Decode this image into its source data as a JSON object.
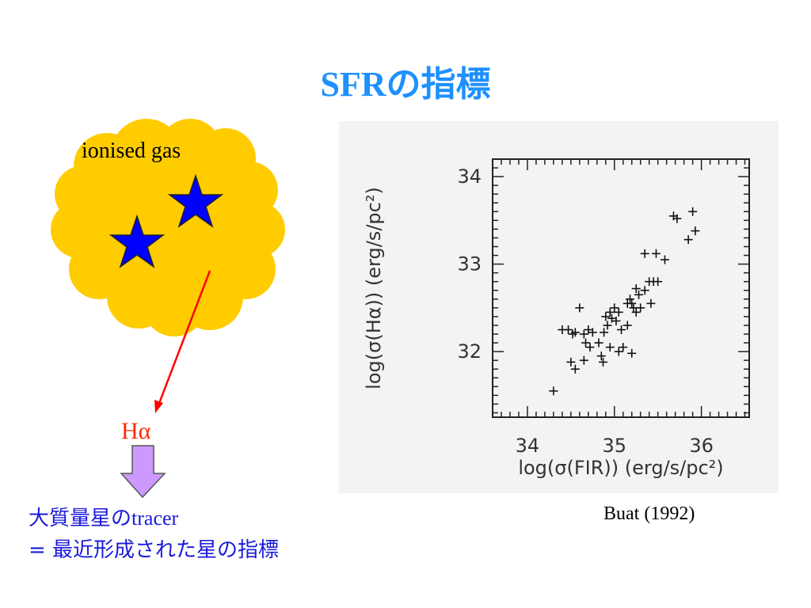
{
  "slide": {
    "title": "SFRの指標",
    "gas_label": "ionised gas",
    "halpha_label": "Hα",
    "tracer_ja": "大質量星の",
    "tracer_en": "tracer",
    "indicator": "= 最近形成された星の指標",
    "citation": "Buat (1992)"
  },
  "colors": {
    "title": "#1e90ff",
    "cloud": "#ffcc00",
    "star": "#0000ff",
    "arrow": "#ff0000",
    "down_arrow": "#cc99ff",
    "text_blue": "#1a1adb"
  },
  "icons": [
    "star-icon",
    "star-icon",
    "down-arrow-icon"
  ],
  "chart_data": {
    "type": "scatter",
    "xlabel": "log(σ(FIR)) (erg/s/pc²)",
    "ylabel": "log(σ(Hα)) (erg/s/pc²)",
    "xlim": [
      33.6,
      36.55
    ],
    "ylim": [
      31.25,
      34.2
    ],
    "xticks": [
      "34",
      "35",
      "36"
    ],
    "yticks": [
      "32",
      "33",
      "34"
    ],
    "marker": "+",
    "grid": false,
    "points": [
      [
        34.3,
        31.55
      ],
      [
        34.4,
        32.25
      ],
      [
        34.47,
        32.25
      ],
      [
        34.52,
        32.2
      ],
      [
        34.55,
        32.22
      ],
      [
        34.6,
        32.5
      ],
      [
        34.65,
        32.2
      ],
      [
        34.7,
        32.25
      ],
      [
        34.75,
        32.22
      ],
      [
        34.5,
        31.88
      ],
      [
        34.55,
        31.8
      ],
      [
        34.65,
        31.9
      ],
      [
        34.67,
        32.1
      ],
      [
        34.72,
        32.05
      ],
      [
        34.85,
        31.95
      ],
      [
        34.87,
        31.88
      ],
      [
        34.82,
        32.1
      ],
      [
        34.88,
        32.22
      ],
      [
        34.9,
        32.4
      ],
      [
        34.92,
        32.3
      ],
      [
        34.95,
        32.45
      ],
      [
        34.97,
        32.38
      ],
      [
        35.0,
        32.5
      ],
      [
        35.02,
        32.35
      ],
      [
        35.05,
        32.45
      ],
      [
        34.95,
        32.05
      ],
      [
        35.05,
        32.0
      ],
      [
        35.1,
        32.05
      ],
      [
        35.15,
        32.3
      ],
      [
        35.08,
        32.25
      ],
      [
        35.2,
        32.55
      ],
      [
        35.22,
        32.5
      ],
      [
        35.25,
        32.45
      ],
      [
        35.18,
        32.6
      ],
      [
        35.15,
        32.55
      ],
      [
        35.28,
        32.65
      ],
      [
        35.25,
        32.72
      ],
      [
        35.35,
        32.7
      ],
      [
        35.3,
        32.5
      ],
      [
        35.4,
        32.8
      ],
      [
        35.45,
        32.8
      ],
      [
        35.5,
        32.8
      ],
      [
        35.42,
        32.55
      ],
      [
        35.2,
        31.98
      ],
      [
        35.35,
        33.12
      ],
      [
        35.48,
        33.12
      ],
      [
        35.58,
        33.05
      ],
      [
        35.68,
        33.55
      ],
      [
        35.72,
        33.52
      ],
      [
        35.9,
        33.6
      ],
      [
        35.93,
        33.38
      ],
      [
        35.85,
        33.28
      ]
    ]
  }
}
